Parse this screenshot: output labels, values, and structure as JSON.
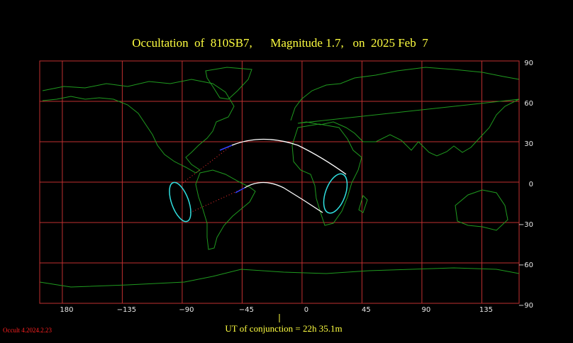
{
  "title": "Occultation  of  810SB7,      Magnitude 1.7,   on  2025 Feb  7",
  "map": {
    "xlim": [
      -197,
      163
    ],
    "ylim": [
      -90,
      90
    ],
    "xticks": [
      {
        "value": -180,
        "label": "180"
      },
      {
        "value": -135,
        "label": "−135"
      },
      {
        "value": -90,
        "label": "−90"
      },
      {
        "value": -45,
        "label": "−45"
      },
      0,
      45,
      90,
      135
    ],
    "yticks": [
      90,
      60,
      30,
      0,
      {
        "value": -30,
        "label": "−30"
      },
      {
        "value": -60,
        "label": "−60"
      },
      {
        "value": -90,
        "label": "−90"
      }
    ]
  },
  "footer": {
    "conjunction": "UT of conjunction = 22h 35.1m",
    "version": "Occult 4.2024.2.23"
  }
}
